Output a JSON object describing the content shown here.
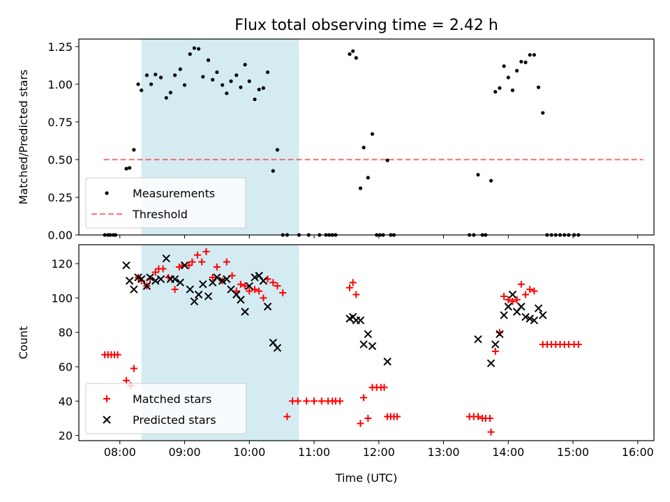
{
  "title": "Flux total observing time = 2.42 h",
  "chart_data": [
    {
      "type": "scatter",
      "ylabel": "Matched/Predicted stars",
      "xlabel": "",
      "xlim": [
        "07:22",
        "16:15"
      ],
      "ylim": [
        0.0,
        1.3
      ],
      "xticks": [
        "08:00",
        "09:00",
        "10:00",
        "11:00",
        "12:00",
        "13:00",
        "14:00",
        "15:00",
        "16:00"
      ],
      "yticks": [
        {
          "v": 0.0,
          "label": "0.00"
        },
        {
          "v": 0.25,
          "label": "0.25"
        },
        {
          "v": 0.5,
          "label": "0.50"
        },
        {
          "v": 0.75,
          "label": "0.75"
        },
        {
          "v": 1.0,
          "label": "1.00"
        },
        {
          "v": 1.25,
          "label": "1.25"
        }
      ],
      "shaded_span": [
        "08:20",
        "10:46"
      ],
      "shade_color": "#add8e6",
      "legend_position": "lower left",
      "legend": [
        "Measurements",
        "Threshold"
      ],
      "threshold": {
        "name": "Threshold",
        "y": 0.5,
        "x_range": [
          "07:45",
          "16:05"
        ],
        "color": "#ff0000",
        "style": "dashed"
      },
      "measurements": {
        "name": "Measurements",
        "color": "#000000",
        "points": [
          [
            "07:46",
            0
          ],
          [
            "07:49",
            0
          ],
          [
            "07:51",
            0
          ],
          [
            "07:54",
            0
          ],
          [
            "07:56",
            0
          ],
          [
            "08:06",
            0.44
          ],
          [
            "08:09",
            0.445
          ],
          [
            "08:13",
            0.565
          ],
          [
            "08:17",
            1.0
          ],
          [
            "08:20",
            0.96
          ],
          [
            "08:25",
            1.06
          ],
          [
            "08:29",
            1.0
          ],
          [
            "08:33",
            1.065
          ],
          [
            "08:38",
            1.045
          ],
          [
            "08:43",
            0.91
          ],
          [
            "08:47",
            0.945
          ],
          [
            "08:51",
            1.06
          ],
          [
            "08:56",
            1.1
          ],
          [
            "09:00",
            0.995
          ],
          [
            "09:05",
            1.2
          ],
          [
            "09:09",
            1.24
          ],
          [
            "09:13",
            1.235
          ],
          [
            "09:17",
            1.05
          ],
          [
            "09:22",
            1.16
          ],
          [
            "09:26",
            1.03
          ],
          [
            "09:30",
            1.08
          ],
          [
            "09:35",
            0.995
          ],
          [
            "09:39",
            0.94
          ],
          [
            "09:43",
            1.02
          ],
          [
            "09:48",
            1.06
          ],
          [
            "09:52",
            0.98
          ],
          [
            "09:56",
            1.13
          ],
          [
            "10:00",
            1.02
          ],
          [
            "10:05",
            0.9
          ],
          [
            "10:09",
            0.965
          ],
          [
            "10:13",
            0.975
          ],
          [
            "10:17",
            1.08
          ],
          [
            "10:22",
            0.425
          ],
          [
            "10:26",
            0.565
          ],
          [
            "10:31",
            0
          ],
          [
            "10:35",
            0
          ],
          [
            "10:46",
            0
          ],
          [
            "10:55",
            0
          ],
          [
            "11:05",
            0
          ],
          [
            "11:11",
            0
          ],
          [
            "11:14",
            0
          ],
          [
            "11:17",
            0
          ],
          [
            "11:20",
            0
          ],
          [
            "11:33",
            1.2
          ],
          [
            "11:36",
            1.22
          ],
          [
            "11:39",
            1.175
          ],
          [
            "11:43",
            0.31
          ],
          [
            "11:46",
            0.58
          ],
          [
            "11:50",
            0.38
          ],
          [
            "11:54",
            0.67
          ],
          [
            "11:58",
            0
          ],
          [
            "12:01",
            0
          ],
          [
            "12:04",
            0
          ],
          [
            "12:08",
            0.495
          ],
          [
            "12:11",
            0
          ],
          [
            "12:14",
            0
          ],
          [
            "13:24",
            0
          ],
          [
            "13:28",
            0
          ],
          [
            "13:32",
            0.4
          ],
          [
            "13:36",
            0
          ],
          [
            "13:39",
            0
          ],
          [
            "13:44",
            0.36
          ],
          [
            "13:48",
            0.95
          ],
          [
            "13:52",
            0.975
          ],
          [
            "13:56",
            1.12
          ],
          [
            "14:00",
            1.045
          ],
          [
            "14:04",
            0.96
          ],
          [
            "14:08",
            1.09
          ],
          [
            "14:12",
            1.15
          ],
          [
            "14:16",
            1.145
          ],
          [
            "14:20",
            1.195
          ],
          [
            "14:24",
            1.195
          ],
          [
            "14:28",
            0.98
          ],
          [
            "14:32",
            0.81
          ],
          [
            "14:36",
            0
          ],
          [
            "14:40",
            0
          ],
          [
            "14:44",
            0
          ],
          [
            "14:48",
            0
          ],
          [
            "14:52",
            0
          ],
          [
            "14:56",
            0
          ],
          [
            "15:01",
            0
          ],
          [
            "15:05",
            0
          ]
        ]
      }
    },
    {
      "type": "scatter",
      "ylabel": "Count",
      "xlabel": "Time (UTC)",
      "xlim": [
        "07:22",
        "16:15"
      ],
      "ylim": [
        17,
        131
      ],
      "xticks": [
        "08:00",
        "09:00",
        "10:00",
        "11:00",
        "12:00",
        "13:00",
        "14:00",
        "15:00",
        "16:00"
      ],
      "yticks": [
        {
          "v": 20,
          "label": "20"
        },
        {
          "v": 40,
          "label": "40"
        },
        {
          "v": 60,
          "label": "60"
        },
        {
          "v": 80,
          "label": "80"
        },
        {
          "v": 100,
          "label": "100"
        },
        {
          "v": 120,
          "label": "120"
        }
      ],
      "shaded_span": [
        "08:20",
        "10:46"
      ],
      "shade_color": "#add8e6",
      "legend_position": "lower left",
      "legend": [
        "Matched stars",
        "Predicted stars"
      ],
      "series": [
        {
          "name": "Matched stars",
          "marker": "+",
          "color": "#ff0000",
          "points": [
            [
              "07:46",
              67
            ],
            [
              "07:49",
              67
            ],
            [
              "07:52",
              67
            ],
            [
              "07:55",
              67
            ],
            [
              "07:58",
              67
            ],
            [
              "08:06",
              52
            ],
            [
              "08:10",
              49
            ],
            [
              "08:13",
              59
            ],
            [
              "08:17",
              112
            ],
            [
              "08:20",
              110
            ],
            [
              "08:25",
              107
            ],
            [
              "08:28",
              111
            ],
            [
              "08:33",
              115
            ],
            [
              "08:36",
              117
            ],
            [
              "08:40",
              117
            ],
            [
              "08:45",
              112
            ],
            [
              "08:51",
              105
            ],
            [
              "08:55",
              118
            ],
            [
              "08:58",
              119
            ],
            [
              "09:04",
              119
            ],
            [
              "09:07",
              121
            ],
            [
              "09:12",
              125
            ],
            [
              "09:16",
              121
            ],
            [
              "09:20",
              127
            ],
            [
              "09:26",
              112
            ],
            [
              "09:30",
              118
            ],
            [
              "09:35",
              110
            ],
            [
              "09:39",
              121
            ],
            [
              "09:44",
              113
            ],
            [
              "09:48",
              104
            ],
            [
              "09:52",
              108
            ],
            [
              "09:56",
              107
            ],
            [
              "10:00",
              104
            ],
            [
              "10:05",
              105
            ],
            [
              "10:09",
              104
            ],
            [
              "10:13",
              100
            ],
            [
              "10:17",
              111
            ],
            [
              "10:22",
              109
            ],
            [
              "10:26",
              107
            ],
            [
              "10:31",
              103
            ],
            [
              "10:35",
              31
            ],
            [
              "10:40",
              40
            ],
            [
              "10:45",
              40
            ],
            [
              "10:53",
              40
            ],
            [
              "11:00",
              40
            ],
            [
              "11:07",
              40
            ],
            [
              "11:13",
              40
            ],
            [
              "11:17",
              40
            ],
            [
              "11:20",
              40
            ],
            [
              "11:24",
              40
            ],
            [
              "11:33",
              106
            ],
            [
              "11:36",
              109
            ],
            [
              "11:39",
              102
            ],
            [
              "11:43",
              27
            ],
            [
              "11:46",
              42
            ],
            [
              "11:50",
              30
            ],
            [
              "11:54",
              48
            ],
            [
              "11:58",
              48
            ],
            [
              "12:02",
              48
            ],
            [
              "12:05",
              48
            ],
            [
              "12:08",
              31
            ],
            [
              "12:11",
              31
            ],
            [
              "12:14",
              31
            ],
            [
              "12:17",
              31
            ],
            [
              "13:24",
              31
            ],
            [
              "13:28",
              31
            ],
            [
              "13:32",
              31
            ],
            [
              "13:36",
              30
            ],
            [
              "13:39",
              30
            ],
            [
              "13:43",
              30
            ],
            [
              "13:44",
              22
            ],
            [
              "13:48",
              69
            ],
            [
              "13:52",
              80
            ],
            [
              "13:56",
              101
            ],
            [
              "14:00",
              99
            ],
            [
              "14:04",
              98
            ],
            [
              "14:08",
              99
            ],
            [
              "14:12",
              108
            ],
            [
              "14:16",
              102
            ],
            [
              "14:20",
              105
            ],
            [
              "14:24",
              104
            ],
            [
              "14:32",
              73
            ],
            [
              "14:36",
              73
            ],
            [
              "14:40",
              73
            ],
            [
              "14:44",
              73
            ],
            [
              "14:48",
              73
            ],
            [
              "14:52",
              73
            ],
            [
              "14:56",
              73
            ],
            [
              "15:01",
              73
            ],
            [
              "15:05",
              73
            ]
          ]
        },
        {
          "name": "Predicted stars",
          "marker": "x",
          "color": "#000000",
          "points": [
            [
              "08:06",
              119
            ],
            [
              "08:09",
              110
            ],
            [
              "08:13",
              105
            ],
            [
              "08:17",
              112
            ],
            [
              "08:20",
              111
            ],
            [
              "08:25",
              107
            ],
            [
              "08:28",
              112
            ],
            [
              "08:33",
              110
            ],
            [
              "08:38",
              111
            ],
            [
              "08:43",
              123
            ],
            [
              "08:47",
              111
            ],
            [
              "08:51",
              111
            ],
            [
              "08:56",
              109
            ],
            [
              "09:00",
              119
            ],
            [
              "09:05",
              105
            ],
            [
              "09:09",
              98
            ],
            [
              "09:13",
              102
            ],
            [
              "09:17",
              108
            ],
            [
              "09:22",
              101
            ],
            [
              "09:26",
              109
            ],
            [
              "09:30",
              112
            ],
            [
              "09:35",
              110
            ],
            [
              "09:39",
              111
            ],
            [
              "09:43",
              105
            ],
            [
              "09:48",
              102
            ],
            [
              "09:52",
              99
            ],
            [
              "09:56",
              92
            ],
            [
              "10:00",
              107
            ],
            [
              "10:05",
              112
            ],
            [
              "10:09",
              113
            ],
            [
              "10:13",
              110
            ],
            [
              "10:17",
              95
            ],
            [
              "10:22",
              74
            ],
            [
              "10:26",
              71
            ],
            [
              "11:33",
              88
            ],
            [
              "11:36",
              89
            ],
            [
              "11:39",
              87
            ],
            [
              "11:43",
              87
            ],
            [
              "11:46",
              73
            ],
            [
              "11:50",
              79
            ],
            [
              "11:54",
              72
            ],
            [
              "12:08",
              63
            ],
            [
              "13:32",
              76
            ],
            [
              "13:44",
              62
            ],
            [
              "13:48",
              73
            ],
            [
              "13:52",
              79
            ],
            [
              "13:56",
              90
            ],
            [
              "14:00",
              95
            ],
            [
              "14:04",
              102
            ],
            [
              "14:08",
              92
            ],
            [
              "14:12",
              95
            ],
            [
              "14:16",
              89
            ],
            [
              "14:20",
              88
            ],
            [
              "14:24",
              87
            ],
            [
              "14:28",
              94
            ],
            [
              "14:32",
              90
            ]
          ]
        }
      ]
    }
  ]
}
